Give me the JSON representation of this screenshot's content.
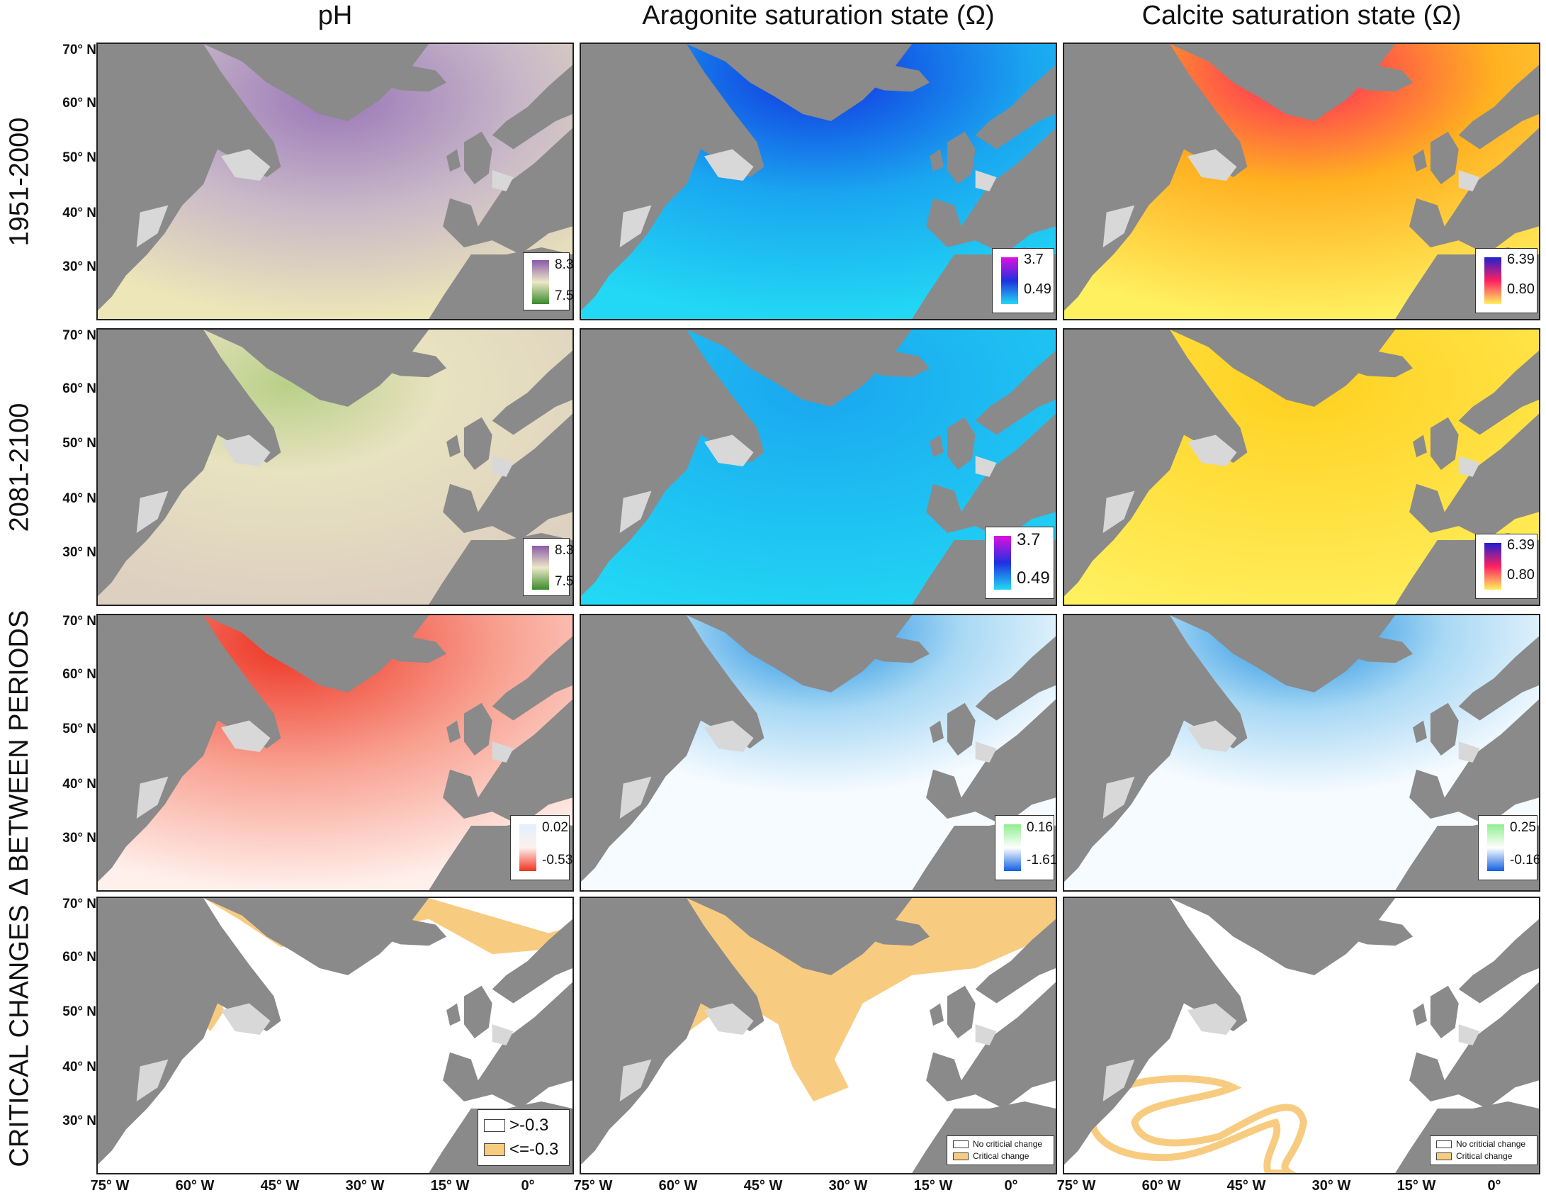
{
  "columns": [
    "pH",
    "Aragonite saturation state (Ω)",
    "Calcite saturation state (Ω)"
  ],
  "rows": [
    "1951-2000",
    "2081-2100",
    "Δ BETWEEN PERIODS",
    "CRITICAL CHANGES"
  ],
  "lat_labels": [
    "70° N",
    "60° N",
    "50° N",
    "40° N",
    "30° N"
  ],
  "lon_labels": [
    "75° W",
    "60° W",
    "45° W",
    "30° W",
    "15° W",
    "0°"
  ],
  "legends": {
    "ph_1951": {
      "max": "8.3",
      "min": "7.5"
    },
    "arag_1951": {
      "max": "3.7",
      "min": "0.49"
    },
    "calc_1951": {
      "max": "6.39",
      "min": "0.80"
    },
    "ph_2081": {
      "max": "8.3",
      "min": "7.5"
    },
    "arag_2081": {
      "max": "3.7",
      "min": "0.49"
    },
    "calc_2081": {
      "max": "6.39",
      "min": "0.80"
    },
    "ph_delta": {
      "max": "0.02",
      "min": "-0.53"
    },
    "arag_delta": {
      "max": "0.16",
      "min": "-1.61"
    },
    "calc_delta": {
      "max": "0.25",
      "min": "-0.16"
    }
  },
  "critical_legends": {
    "ph": {
      "none": ">-0.3",
      "critical": "<=-0.3"
    },
    "arag": {
      "none": "No criticial change",
      "critical": "Critical change"
    },
    "calc": {
      "none": "No criticial change",
      "critical": "Critical change"
    }
  },
  "colors": {
    "land_dark": "#8a8a8a",
    "land_light": "#d8d8d8",
    "ph_base": "#ece6b8",
    "ph_high": "#9a78b8",
    "ph_low": "#3a8a2a",
    "arag_base": "#22d8f4",
    "arag_high": "#1030e0",
    "calc_base": "#fff060",
    "calc_high": "#ff2060",
    "delta_ph": "#ee3322",
    "delta_arag": "#1188e0",
    "critical": "#f8cc80"
  }
}
